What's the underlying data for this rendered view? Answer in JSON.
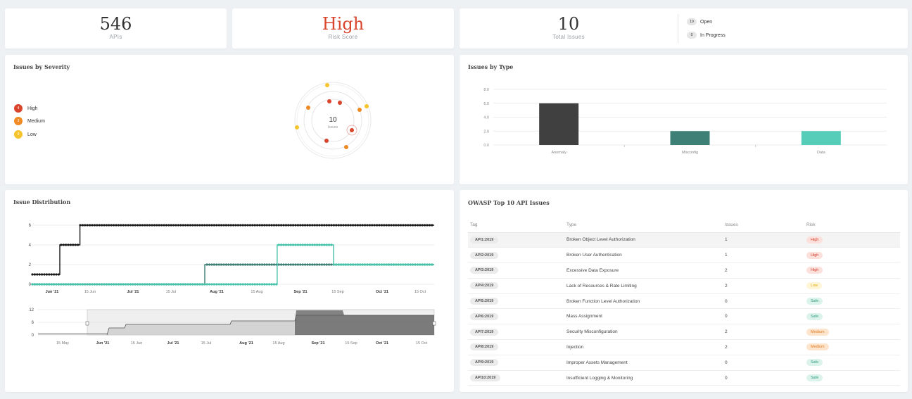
{
  "kpis": {
    "apis": {
      "value": "546",
      "label": "APIs"
    },
    "risk": {
      "value": "High",
      "label": "Risk Score",
      "color": "#d9452c"
    },
    "issues": {
      "value": "10",
      "label": "Total Issues"
    },
    "status": [
      {
        "count": "10",
        "label": "Open"
      },
      {
        "count": "0",
        "label": "In Progress"
      }
    ]
  },
  "severity": {
    "title": "Issues by Severity",
    "total": "10",
    "total_label": "Issues",
    "legend": [
      {
        "count": "4",
        "label": "High",
        "color": "#d9452c"
      },
      {
        "count": "3",
        "label": "Medium",
        "color": "#f08a24"
      },
      {
        "count": "3",
        "label": "Low",
        "color": "#f5c42c"
      }
    ]
  },
  "issues_by_type": {
    "title": "Issues by Type",
    "chart_data": {
      "type": "bar",
      "categories": [
        "Anomaly",
        "Misconfig",
        "Data"
      ],
      "values": [
        6,
        2,
        2
      ],
      "colors": [
        "#404040",
        "#3e8075",
        "#55cdb8"
      ],
      "yticks": [
        "8.0",
        "6.0",
        "4.0",
        "2.0",
        "0.0"
      ],
      "ylim": [
        0,
        8
      ],
      "grid": true
    }
  },
  "distribution": {
    "title": "Issue Distribution",
    "chart_data": {
      "type": "line",
      "yticks": [
        "6",
        "4",
        "2",
        "0"
      ],
      "xticks": [
        "Jun '21",
        "15 Jun",
        "Jul '21",
        "15 Jul",
        "Aug '21",
        "15 Aug",
        "Sep '21",
        "15 Sep",
        "Oct '21",
        "15 Oct"
      ],
      "xticks_bold": [
        "Jun '21",
        "Jul '21",
        "Aug '21",
        "Sep '21",
        "Oct '21"
      ],
      "ylim": [
        0,
        6
      ],
      "series": [
        {
          "color": "#1a1a1a",
          "steps": [
            [
              0,
              1
            ],
            [
              0.07,
              4
            ],
            [
              0.12,
              6
            ]
          ]
        },
        {
          "color": "#3a7d72",
          "steps": [
            [
              0,
              0
            ],
            [
              0.43,
              2
            ],
            [
              1,
              2
            ]
          ]
        },
        {
          "color": "#45c2a8",
          "steps": [
            [
              0,
              0
            ],
            [
              0.61,
              4
            ],
            [
              0.75,
              2
            ]
          ]
        }
      ]
    },
    "navigator": {
      "yticks": [
        "12",
        "6",
        "0"
      ],
      "xticks": [
        "15 May",
        "Jun '21",
        "15 Jun",
        "Jul '21",
        "15 Jul",
        "Aug '21",
        "15 Aug",
        "Sep '21",
        "15 Sep",
        "Oct '21",
        "15 Oct"
      ],
      "xticks_bold": [
        "Jun '21",
        "Jul '21",
        "Aug '21",
        "Sep '21",
        "Oct '21"
      ]
    }
  },
  "owasp": {
    "title": "OWASP Top 10 API Issues",
    "columns": [
      "Tag",
      "Type",
      "Issues",
      "Risk"
    ],
    "rows": [
      {
        "tag": "API1:2019",
        "type": "Broken Object Level Authorization",
        "issues": "1",
        "risk": "High"
      },
      {
        "tag": "API2:2019",
        "type": "Broken User Authentication",
        "issues": "1",
        "risk": "High"
      },
      {
        "tag": "API3:2019",
        "type": "Excessive Data Exposure",
        "issues": "2",
        "risk": "High"
      },
      {
        "tag": "API4:2019",
        "type": "Lack of Resources & Rate Limiting",
        "issues": "2",
        "risk": "Low"
      },
      {
        "tag": "API5:2019",
        "type": "Broken Function Level Authorization",
        "issues": "0",
        "risk": "Safe"
      },
      {
        "tag": "API6:2019",
        "type": "Mass Assignment",
        "issues": "0",
        "risk": "Safe"
      },
      {
        "tag": "API7:2019",
        "type": "Security Misconfiguration",
        "issues": "2",
        "risk": "Medium"
      },
      {
        "tag": "API8:2019",
        "type": "Injection",
        "issues": "2",
        "risk": "Medium"
      },
      {
        "tag": "API9:2019",
        "type": "Improper Assets Management",
        "issues": "0",
        "risk": "Safe"
      },
      {
        "tag": "API10:2019",
        "type": "Insufficient Logging & Monitoring",
        "issues": "0",
        "risk": "Safe"
      }
    ]
  }
}
